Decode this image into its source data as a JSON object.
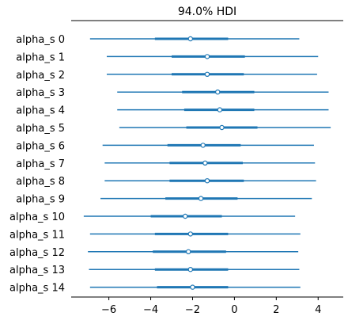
{
  "chart_data": {
    "type": "forest",
    "title": "94.0% HDI",
    "xlim": [
      -7.8,
      5.2
    ],
    "xticks": [
      -6,
      -4,
      -2,
      0,
      2,
      4
    ],
    "xtick_labels": [
      "−6",
      "−4",
      "−2",
      "0",
      "2",
      "4"
    ],
    "grid": false,
    "color": "#1f77b4",
    "labels": [
      "alpha_s 0",
      "alpha_s 1",
      "alpha_s 2",
      "alpha_s 3",
      "alpha_s 4",
      "alpha_s 5",
      "alpha_s 6",
      "alpha_s 7",
      "alpha_s 8",
      "alpha_s 9",
      "alpha_s 10",
      "alpha_s 11",
      "alpha_s 12",
      "alpha_s 13",
      "alpha_s 14"
    ],
    "hdi": [
      [
        -6.9,
        3.1
      ],
      [
        -6.1,
        4.0
      ],
      [
        -6.1,
        3.95
      ],
      [
        -5.6,
        4.5
      ],
      [
        -5.6,
        4.5
      ],
      [
        -5.5,
        4.6
      ],
      [
        -6.3,
        3.8
      ],
      [
        -6.2,
        3.85
      ],
      [
        -6.2,
        3.9
      ],
      [
        -6.4,
        3.7
      ],
      [
        -7.2,
        2.9
      ],
      [
        -6.9,
        3.15
      ],
      [
        -7.0,
        3.05
      ],
      [
        -6.95,
        3.1
      ],
      [
        -6.9,
        3.15
      ]
    ],
    "iqr": [
      [
        -3.8,
        -0.3
      ],
      [
        -3.0,
        0.5
      ],
      [
        -3.0,
        0.45
      ],
      [
        -2.5,
        0.95
      ],
      [
        -2.4,
        0.95
      ],
      [
        -2.3,
        1.1
      ],
      [
        -3.2,
        0.3
      ],
      [
        -3.1,
        0.4
      ],
      [
        -3.1,
        0.45
      ],
      [
        -3.3,
        0.15
      ],
      [
        -4.0,
        -0.6
      ],
      [
        -3.8,
        -0.3
      ],
      [
        -3.9,
        -0.4
      ],
      [
        -3.8,
        -0.3
      ],
      [
        -3.7,
        -0.3
      ]
    ],
    "median": [
      -2.1,
      -1.3,
      -1.3,
      -0.8,
      -0.7,
      -0.6,
      -1.5,
      -1.4,
      -1.3,
      -1.6,
      -2.35,
      -2.1,
      -2.2,
      -2.1,
      -2.0
    ]
  }
}
